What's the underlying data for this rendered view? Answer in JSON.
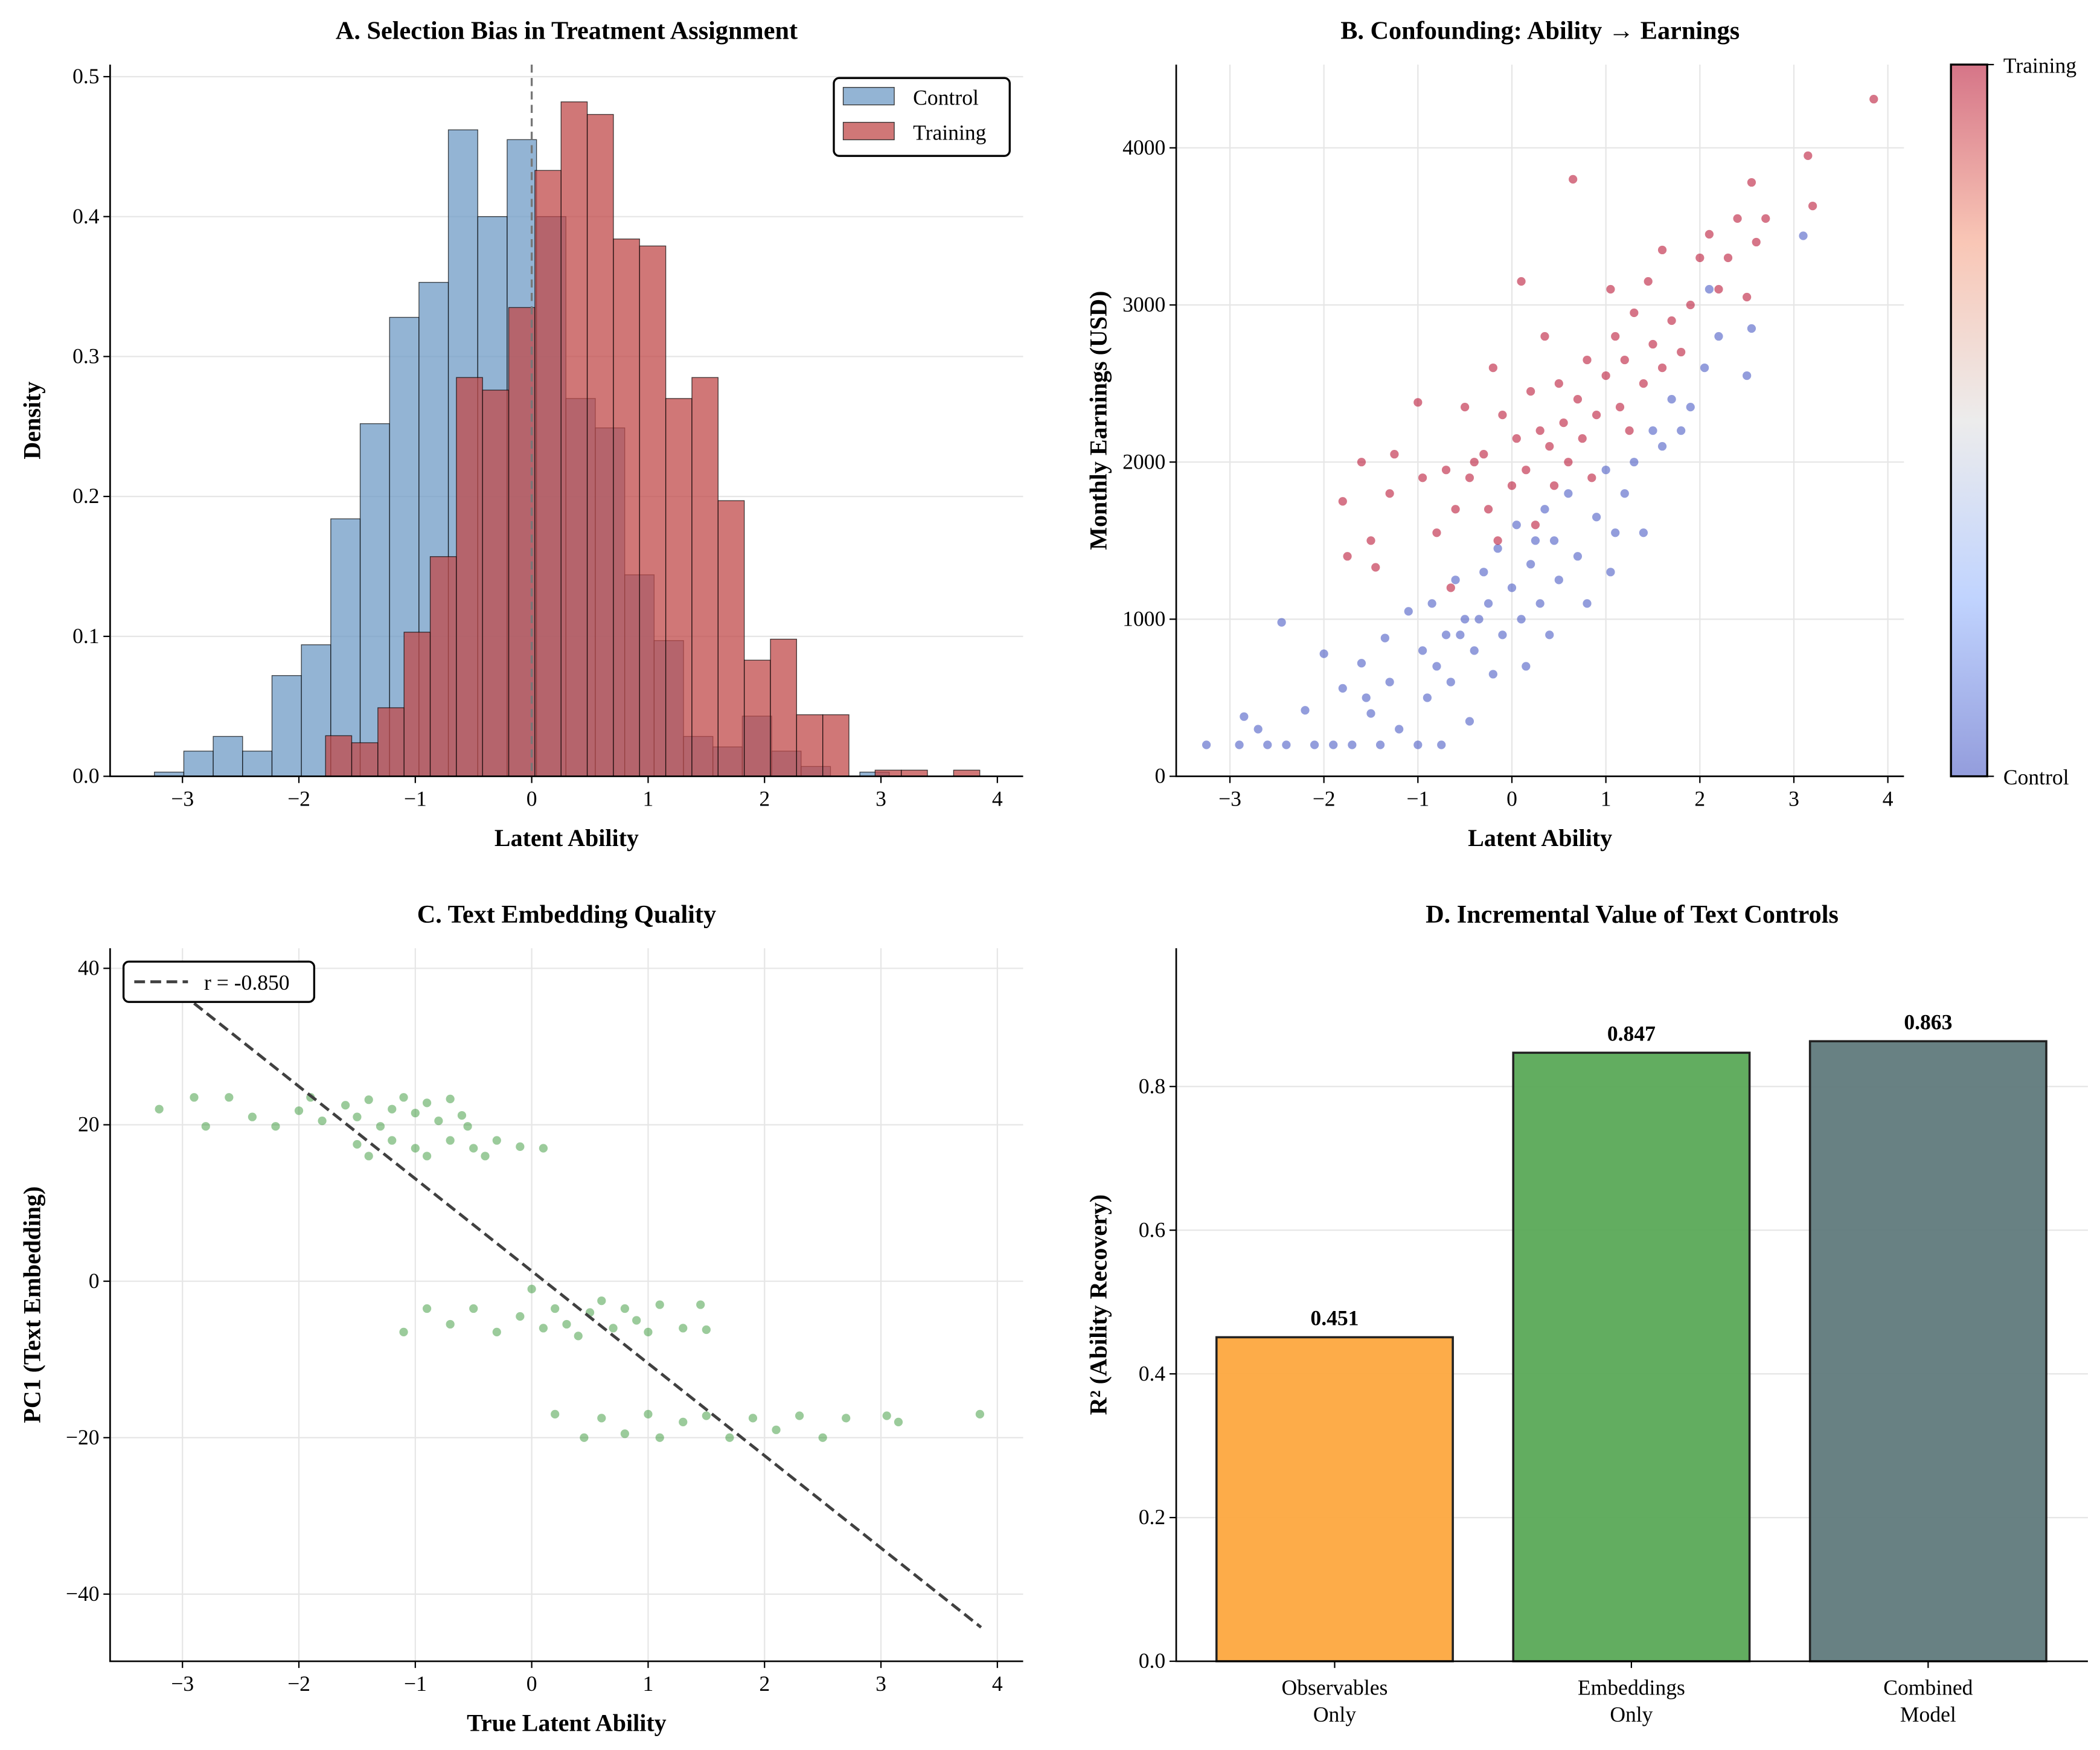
{
  "chart_data": [
    {
      "type": "bar",
      "subtype": "histogram",
      "title": "A. Selection Bias in Treatment Assignment",
      "xlabel": "Latent Ability",
      "ylabel": "Density",
      "xlim": [
        -3.6,
        4.2
      ],
      "ylim": [
        0,
        0.507
      ],
      "xticks": [
        "−3",
        "−2",
        "−1",
        "0",
        "1",
        "2",
        "3",
        "4"
      ],
      "yticks": [
        "0.0",
        "0.1",
        "0.2",
        "0.3",
        "0.4",
        "0.5"
      ],
      "grid": "y",
      "legend_placement": "top-right",
      "vline": {
        "x": 0,
        "style": "dashed",
        "color": "#808080"
      },
      "series": [
        {
          "name": "Control",
          "color": "#6f9bc6",
          "bin_start": -3.241,
          "bin_width": 0.2525,
          "values": [
            0.003,
            0.018,
            0.0285,
            0.018,
            0.072,
            0.094,
            0.184,
            0.252,
            0.328,
            0.353,
            0.462,
            0.4,
            0.455,
            0.4,
            0.27,
            0.249,
            0.144,
            0.097,
            0.0285,
            0.021,
            0.043,
            0.018,
            0.007,
            0,
            0.003
          ]
        },
        {
          "name": "Training",
          "color": "#c0494a",
          "bin_start": -1.771,
          "bin_width": 0.2248,
          "values": [
            0.029,
            0.024,
            0.049,
            0.103,
            0.157,
            0.285,
            0.276,
            0.335,
            0.433,
            0.482,
            0.473,
            0.384,
            0.379,
            0.27,
            0.285,
            0.197,
            0.083,
            0.098,
            0.044,
            0.044,
            0,
            0.0044,
            0.0044,
            0,
            0.0044
          ]
        }
      ]
    },
    {
      "type": "scatter",
      "title": "B. Confounding: Ability → Earnings",
      "xlabel": "Latent Ability",
      "ylabel": "Monthly Earnings (USD)",
      "xlim": [
        -3.6,
        4.2
      ],
      "ylim": [
        0,
        4530
      ],
      "xticks": [
        "−3",
        "−2",
        "−1",
        "0",
        "1",
        "2",
        "3",
        "4"
      ],
      "yticks": [
        "0",
        "1000",
        "2000",
        "3000",
        "4000"
      ],
      "grid": "both",
      "colorbar": {
        "colormap": "coolwarm",
        "top_label": "Training",
        "bottom_label": "Control",
        "top_color": "#b40426",
        "bottom_color": "#3b4cc0"
      },
      "series": [
        {
          "name": "Control",
          "color": "#3b4cc0",
          "points": [
            [
              -3.25,
              200
            ],
            [
              -2.9,
              200
            ],
            [
              -2.85,
              380
            ],
            [
              -2.7,
              300
            ],
            [
              -2.6,
              200
            ],
            [
              -2.45,
              980
            ],
            [
              -2.4,
              200
            ],
            [
              -2.2,
              420
            ],
            [
              -2.1,
              200
            ],
            [
              -2.0,
              780
            ],
            [
              -1.9,
              200
            ],
            [
              -1.8,
              560
            ],
            [
              -1.7,
              200
            ],
            [
              -1.6,
              720
            ],
            [
              -1.55,
              500
            ],
            [
              -1.5,
              400
            ],
            [
              -1.4,
              200
            ],
            [
              -1.35,
              880
            ],
            [
              -1.3,
              600
            ],
            [
              -1.2,
              300
            ],
            [
              -1.1,
              1050
            ],
            [
              -1.0,
              200
            ],
            [
              -0.95,
              800
            ],
            [
              -0.9,
              500
            ],
            [
              -0.85,
              1100
            ],
            [
              -0.8,
              700
            ],
            [
              -0.75,
              200
            ],
            [
              -0.7,
              900
            ],
            [
              -0.65,
              600
            ],
            [
              -0.6,
              1250
            ],
            [
              -0.55,
              900
            ],
            [
              -0.5,
              1000
            ],
            [
              -0.45,
              350
            ],
            [
              -0.4,
              800
            ],
            [
              -0.35,
              1000
            ],
            [
              -0.3,
              1300
            ],
            [
              -0.25,
              1100
            ],
            [
              -0.2,
              650
            ],
            [
              -0.15,
              1450
            ],
            [
              -0.1,
              900
            ],
            [
              0,
              1200
            ],
            [
              0.05,
              1600
            ],
            [
              0.1,
              1000
            ],
            [
              0.15,
              700
            ],
            [
              0.2,
              1350
            ],
            [
              0.25,
              1500
            ],
            [
              0.3,
              1100
            ],
            [
              0.35,
              1700
            ],
            [
              0.4,
              900
            ],
            [
              0.45,
              1500
            ],
            [
              0.5,
              1250
            ],
            [
              0.6,
              1800
            ],
            [
              0.7,
              1400
            ],
            [
              0.8,
              1100
            ],
            [
              0.9,
              1650
            ],
            [
              1.0,
              1950
            ],
            [
              1.05,
              1300
            ],
            [
              1.1,
              1550
            ],
            [
              1.2,
              1800
            ],
            [
              1.3,
              2000
            ],
            [
              1.4,
              1550
            ],
            [
              1.5,
              2200
            ],
            [
              1.6,
              2100
            ],
            [
              1.7,
              2400
            ],
            [
              1.8,
              2200
            ],
            [
              1.9,
              2350
            ],
            [
              2.05,
              2600
            ],
            [
              2.1,
              3100
            ],
            [
              2.2,
              2800
            ],
            [
              2.5,
              2550
            ],
            [
              2.55,
              2850
            ],
            [
              3.1,
              3440
            ]
          ]
        },
        {
          "name": "Training",
          "color": "#b40426",
          "points": [
            [
              -1.8,
              1750
            ],
            [
              -1.75,
              1400
            ],
            [
              -1.6,
              2000
            ],
            [
              -1.5,
              1500
            ],
            [
              -1.45,
              1330
            ],
            [
              -1.3,
              1800
            ],
            [
              -1.25,
              2050
            ],
            [
              -1.0,
              2380
            ],
            [
              -0.95,
              1900
            ],
            [
              -0.8,
              1550
            ],
            [
              -0.7,
              1950
            ],
            [
              -0.65,
              1200
            ],
            [
              -0.6,
              1700
            ],
            [
              -0.5,
              2350
            ],
            [
              -0.45,
              1900
            ],
            [
              -0.4,
              2000
            ],
            [
              -0.3,
              2050
            ],
            [
              -0.25,
              1700
            ],
            [
              -0.2,
              2600
            ],
            [
              -0.15,
              1500
            ],
            [
              -0.1,
              2300
            ],
            [
              0,
              1850
            ],
            [
              0.05,
              2150
            ],
            [
              0.1,
              3150
            ],
            [
              0.15,
              1950
            ],
            [
              0.2,
              2450
            ],
            [
              0.25,
              1600
            ],
            [
              0.3,
              2200
            ],
            [
              0.35,
              2800
            ],
            [
              0.4,
              2100
            ],
            [
              0.45,
              1850
            ],
            [
              0.5,
              2500
            ],
            [
              0.55,
              2250
            ],
            [
              0.6,
              2000
            ],
            [
              0.65,
              3800
            ],
            [
              0.7,
              2400
            ],
            [
              0.75,
              2150
            ],
            [
              0.8,
              2650
            ],
            [
              0.85,
              1900
            ],
            [
              0.9,
              2300
            ],
            [
              1.0,
              2550
            ],
            [
              1.05,
              3100
            ],
            [
              1.1,
              2800
            ],
            [
              1.15,
              2350
            ],
            [
              1.2,
              2650
            ],
            [
              1.25,
              2200
            ],
            [
              1.3,
              2950
            ],
            [
              1.4,
              2500
            ],
            [
              1.45,
              3150
            ],
            [
              1.5,
              2750
            ],
            [
              1.6,
              2600
            ],
            [
              1.6,
              3350
            ],
            [
              1.7,
              2900
            ],
            [
              1.8,
              2700
            ],
            [
              1.9,
              3000
            ],
            [
              2.0,
              3300
            ],
            [
              2.1,
              3450
            ],
            [
              2.2,
              3100
            ],
            [
              2.3,
              3300
            ],
            [
              2.4,
              3550
            ],
            [
              2.5,
              3050
            ],
            [
              2.55,
              3780
            ],
            [
              2.6,
              3400
            ],
            [
              2.7,
              3550
            ],
            [
              3.15,
              3950
            ],
            [
              3.2,
              3630
            ],
            [
              3.85,
              4310
            ]
          ]
        }
      ]
    },
    {
      "type": "scatter",
      "title": "C. Text Embedding Quality",
      "xlabel": "True Latent Ability",
      "ylabel": "PC1 (Text Embedding)",
      "xlim": [
        -3.6,
        4.2
      ],
      "ylim": [
        -48.5,
        42.6
      ],
      "xticks": [
        "−3",
        "−2",
        "−1",
        "0",
        "1",
        "2",
        "3",
        "4"
      ],
      "yticks": [
        "−40",
        "−20",
        "0",
        "20",
        "40"
      ],
      "grid": "both",
      "legend_placement": "top-left",
      "point_color": "#228b22",
      "fit_line": {
        "label": "r = -0.850",
        "slope": -11.8,
        "intercept": 1.3,
        "x_range": [
          -2.9,
          3.86
        ],
        "color": "#404040",
        "style": "dashed"
      },
      "points": [
        [
          -3.2,
          22
        ],
        [
          -2.9,
          23.5
        ],
        [
          -2.8,
          19.8
        ],
        [
          -2.6,
          23.5
        ],
        [
          -2.4,
          21
        ],
        [
          -2.2,
          19.8
        ],
        [
          -2.0,
          21.8
        ],
        [
          -1.9,
          23.5
        ],
        [
          -1.8,
          20.5
        ],
        [
          -1.6,
          22.5
        ],
        [
          -1.5,
          21
        ],
        [
          -1.4,
          23.2
        ],
        [
          -1.3,
          19.8
        ],
        [
          -1.2,
          22
        ],
        [
          -1.1,
          23.5
        ],
        [
          -1.0,
          21.5
        ],
        [
          -0.9,
          22.8
        ],
        [
          -0.8,
          20.5
        ],
        [
          -0.7,
          23.3
        ],
        [
          -0.6,
          21.2
        ],
        [
          -0.55,
          19.8
        ],
        [
          -1.5,
          17.5
        ],
        [
          -1.4,
          16
        ],
        [
          -1.2,
          18
        ],
        [
          -1.0,
          17
        ],
        [
          -0.9,
          16
        ],
        [
          -0.7,
          18
        ],
        [
          -0.5,
          17
        ],
        [
          -0.4,
          16
        ],
        [
          -0.3,
          18
        ],
        [
          -0.1,
          17.2
        ],
        [
          0.1,
          17
        ],
        [
          -0.9,
          -3.5
        ],
        [
          -1.1,
          -6.5
        ],
        [
          -0.7,
          -5.5
        ],
        [
          -0.5,
          -3.5
        ],
        [
          -0.3,
          -6.5
        ],
        [
          -0.1,
          -4.5
        ],
        [
          0,
          -1
        ],
        [
          0.1,
          -6
        ],
        [
          0.2,
          -3.5
        ],
        [
          0.3,
          -5.5
        ],
        [
          0.4,
          -7
        ],
        [
          0.5,
          -4
        ],
        [
          0.6,
          -2.5
        ],
        [
          0.7,
          -6
        ],
        [
          0.8,
          -3.5
        ],
        [
          0.9,
          -5
        ],
        [
          1.0,
          -6.5
        ],
        [
          1.1,
          -3
        ],
        [
          1.3,
          -6
        ],
        [
          1.45,
          -3
        ],
        [
          1.5,
          -6.2
        ],
        [
          0.2,
          -17
        ],
        [
          0.45,
          -20
        ],
        [
          0.6,
          -17.5
        ],
        [
          0.8,
          -19.5
        ],
        [
          1.0,
          -17
        ],
        [
          1.1,
          -20
        ],
        [
          1.3,
          -18
        ],
        [
          1.5,
          -17.2
        ],
        [
          1.7,
          -20
        ],
        [
          1.9,
          -17.5
        ],
        [
          2.1,
          -19
        ],
        [
          2.3,
          -17.2
        ],
        [
          2.5,
          -20
        ],
        [
          2.7,
          -17.5
        ],
        [
          3.05,
          -17.2
        ],
        [
          3.15,
          -18
        ],
        [
          3.85,
          -17
        ]
      ]
    },
    {
      "type": "bar",
      "title": "D. Incremental Value of Text Controls",
      "xlabel": "",
      "ylabel": "R² (Ability Recovery)",
      "ylim": [
        0,
        0.993
      ],
      "yticks": [
        "0.0",
        "0.2",
        "0.4",
        "0.6",
        "0.8"
      ],
      "grid": "y",
      "categories": [
        [
          "Observables",
          "Only"
        ],
        [
          "Embeddings",
          "Only"
        ],
        [
          "Combined",
          "Model"
        ]
      ],
      "values": [
        0.451,
        0.847,
        0.863
      ],
      "labels": [
        "0.451",
        "0.847",
        "0.863"
      ],
      "colors": [
        "#fda83f",
        "#5aa957",
        "#607a7c"
      ]
    }
  ]
}
